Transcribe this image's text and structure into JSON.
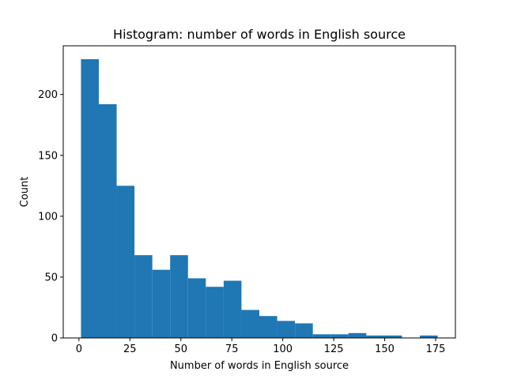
{
  "chart_data": {
    "type": "bar",
    "title": "Histogram: number of words in English source",
    "xlabel": "Number of words in English source",
    "ylabel": "Count",
    "xlim": [
      -7.7,
      184.7
    ],
    "ylim": [
      0,
      240
    ],
    "xticks": [
      0,
      25,
      50,
      75,
      100,
      125,
      150,
      175
    ],
    "yticks": [
      0,
      50,
      100,
      150,
      200
    ],
    "bin_edges": [
      1,
      9.75,
      18.5,
      27.25,
      36,
      44.75,
      53.5,
      62.25,
      71,
      79.75,
      88.5,
      97.25,
      106,
      114.75,
      123.5,
      132.25,
      141,
      149.75,
      158.5,
      167.25,
      176
    ],
    "counts": [
      229,
      192,
      125,
      68,
      56,
      68,
      49,
      42,
      47,
      23,
      18,
      14,
      12,
      3,
      3,
      4,
      2,
      2,
      0,
      2
    ],
    "bar_color": "#1f77b4",
    "grid": false,
    "legend": "none"
  }
}
